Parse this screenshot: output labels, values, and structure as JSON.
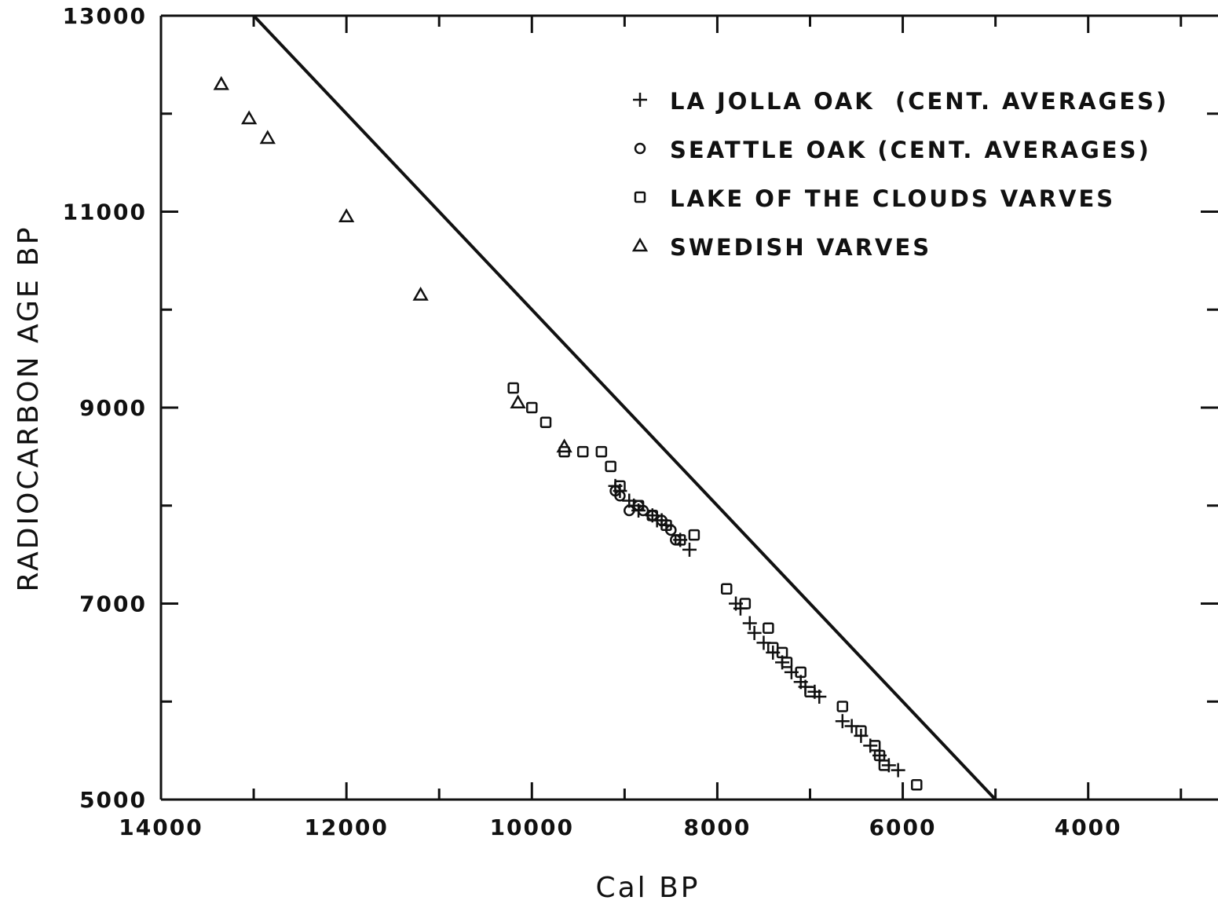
{
  "chart_data": {
    "type": "scatter",
    "xlabel": "Cal BP",
    "ylabel": "RADIOCARBON AGE BP",
    "xlim": [
      14000,
      2600
    ],
    "ylim": [
      5000,
      13000
    ],
    "x_reversed": true,
    "x_ticks": [
      14000,
      12000,
      10000,
      8000,
      6000,
      4000
    ],
    "y_ticks": [
      13000,
      11000,
      9000,
      7000,
      5000
    ],
    "legend_position": "top-right",
    "reference_line": {
      "x": [
        13000,
        5000
      ],
      "y": [
        13000,
        5000
      ]
    },
    "series": [
      {
        "name": "LA JOLLA OAK  (CENT. AVERAGES)",
        "marker": "plus",
        "x": [
          9100,
          9050,
          8950,
          8900,
          8850,
          8700,
          8650,
          8600,
          8550,
          8400,
          8300,
          7800,
          7750,
          7650,
          7600,
          7500,
          7400,
          7300,
          7200,
          7100,
          7050,
          6950,
          6900,
          6650,
          6550,
          6450,
          6350,
          6250,
          6150,
          6050
        ],
        "y": [
          8200,
          8150,
          8050,
          8000,
          7950,
          7900,
          7850,
          7850,
          7800,
          7650,
          7550,
          7000,
          6950,
          6800,
          6700,
          6600,
          6500,
          6400,
          6300,
          6200,
          6150,
          6100,
          6050,
          5800,
          5750,
          5650,
          5550,
          5450,
          5350,
          5300
        ]
      },
      {
        "name": "SEATTLE OAK (CENT. AVERAGES)",
        "marker": "circle",
        "x": [
          9100,
          9050,
          8950,
          8850,
          8800,
          8700,
          8600,
          8500,
          8450
        ],
        "y": [
          8150,
          8100,
          7950,
          8000,
          7950,
          7900,
          7850,
          7750,
          7650
        ]
      },
      {
        "name": "LAKE OF THE CLOUDS VARVES",
        "marker": "square",
        "x": [
          10200,
          10000,
          9850,
          9650,
          9450,
          9250,
          9150,
          9050,
          8850,
          8700,
          8550,
          8400,
          8250,
          7900,
          7700,
          7450,
          7400,
          7300,
          7250,
          7100,
          7000,
          6650,
          6450,
          6300,
          6250,
          6200,
          5850
        ],
        "y": [
          9200,
          9000,
          8850,
          8550,
          8550,
          8550,
          8400,
          8200,
          8000,
          7900,
          7800,
          7650,
          7700,
          7150,
          7000,
          6750,
          6550,
          6500,
          6400,
          6300,
          6100,
          5950,
          5700,
          5550,
          5450,
          5350,
          5150
        ]
      },
      {
        "name": "SWEDISH VARVES",
        "marker": "triangle",
        "x": [
          13350,
          13050,
          12850,
          12000,
          11200,
          10150,
          9650
        ],
        "y": [
          12300,
          11950,
          11750,
          10950,
          10150,
          9050,
          8600
        ]
      }
    ]
  }
}
